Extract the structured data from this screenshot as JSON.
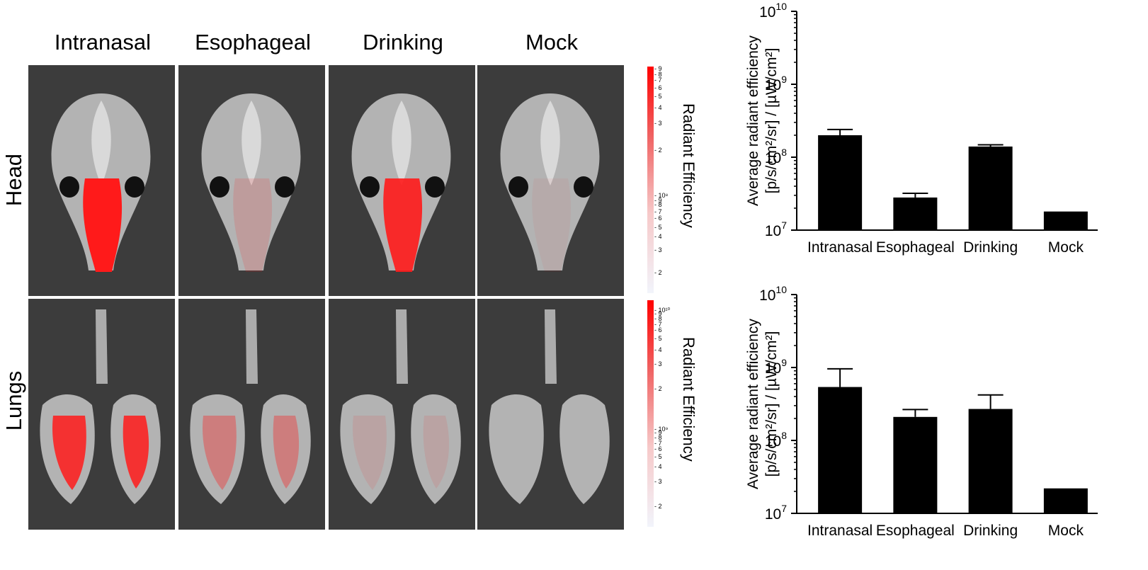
{
  "panel": {
    "columns": [
      "Intranasal",
      "Esophageal",
      "Drinking",
      "Mock"
    ],
    "rows": [
      "Head",
      "Lungs"
    ],
    "colorbar_title": "Radiant Efficiency",
    "colorbar_head_ticks": [
      {
        "label": "9",
        "frac": 0.99
      },
      {
        "label": "8",
        "frac": 0.965
      },
      {
        "label": "7",
        "frac": 0.94
      },
      {
        "label": "6",
        "frac": 0.905
      },
      {
        "label": "5",
        "frac": 0.87
      },
      {
        "label": "4",
        "frac": 0.82
      },
      {
        "label": "3",
        "frac": 0.75
      },
      {
        "label": "2",
        "frac": 0.63
      },
      {
        "label": "10⁸",
        "frac": 0.43
      },
      {
        "label": "9",
        "frac": 0.41
      },
      {
        "label": "8",
        "frac": 0.39
      },
      {
        "label": "7",
        "frac": 0.36
      },
      {
        "label": "6",
        "frac": 0.33
      },
      {
        "label": "5",
        "frac": 0.29
      },
      {
        "label": "4",
        "frac": 0.25
      },
      {
        "label": "3",
        "frac": 0.19
      },
      {
        "label": "2",
        "frac": 0.09
      }
    ],
    "colorbar_lungs_ticks": [
      {
        "label": "10¹⁰",
        "frac": 0.955
      },
      {
        "label": "9",
        "frac": 0.94
      },
      {
        "label": "8",
        "frac": 0.92
      },
      {
        "label": "7",
        "frac": 0.895
      },
      {
        "label": "6",
        "frac": 0.87
      },
      {
        "label": "5",
        "frac": 0.83
      },
      {
        "label": "4",
        "frac": 0.78
      },
      {
        "label": "3",
        "frac": 0.72
      },
      {
        "label": "2",
        "frac": 0.61
      },
      {
        "label": "10⁹",
        "frac": 0.43
      },
      {
        "label": "9",
        "frac": 0.415
      },
      {
        "label": "8",
        "frac": 0.395
      },
      {
        "label": "7",
        "frac": 0.37
      },
      {
        "label": "6",
        "frac": 0.345
      },
      {
        "label": "5",
        "frac": 0.31
      },
      {
        "label": "4",
        "frac": 0.265
      },
      {
        "label": "3",
        "frac": 0.2
      },
      {
        "label": "2",
        "frac": 0.09
      }
    ],
    "signal_level": {
      "head": [
        1.0,
        0.15,
        0.9,
        0.05
      ],
      "lungs": [
        0.85,
        0.35,
        0.1,
        0.0
      ]
    },
    "colors": {
      "signal": "#ff1a1a",
      "tissue": "#c8c8c8",
      "background": "#3c3c3c"
    }
  },
  "chart_data": [
    {
      "type": "bar",
      "categories": [
        "Intranasal",
        "Esophageal",
        "Drinking",
        "Mock"
      ],
      "values": [
        200000000,
        28000000,
        140000000,
        18000000
      ],
      "error_upper": [
        240000000,
        32000000,
        148000000,
        18000000
      ],
      "ylabel_line1": "Average radiant efficiency",
      "ylabel_line2": "[p/s/cm²/sr] / [µW/cm²]",
      "yscale": "log",
      "ylim": [
        10000000,
        10000000000
      ],
      "ytick_labels": [
        {
          "base": "10",
          "exp": "7"
        },
        {
          "base": "10",
          "exp": "8"
        },
        {
          "base": "10",
          "exp": "9"
        },
        {
          "base": "10",
          "exp": "10"
        }
      ],
      "bar_color": "#000000",
      "grid": false
    },
    {
      "type": "bar",
      "categories": [
        "Intranasal",
        "Esophageal",
        "Drinking",
        "Mock"
      ],
      "values": [
        540000000,
        210000000,
        270000000,
        22000000
      ],
      "error_upper": [
        960000000,
        265000000,
        420000000,
        22000000
      ],
      "ylabel_line1": "Average radiant efficiency",
      "ylabel_line2": "[p/s/cm²/sr] / [µW/cm²]",
      "yscale": "log",
      "ylim": [
        10000000,
        10000000000
      ],
      "ytick_labels": [
        {
          "base": "10",
          "exp": "7"
        },
        {
          "base": "10",
          "exp": "8"
        },
        {
          "base": "10",
          "exp": "9"
        },
        {
          "base": "10",
          "exp": "10"
        }
      ],
      "bar_color": "#000000",
      "grid": false
    }
  ]
}
